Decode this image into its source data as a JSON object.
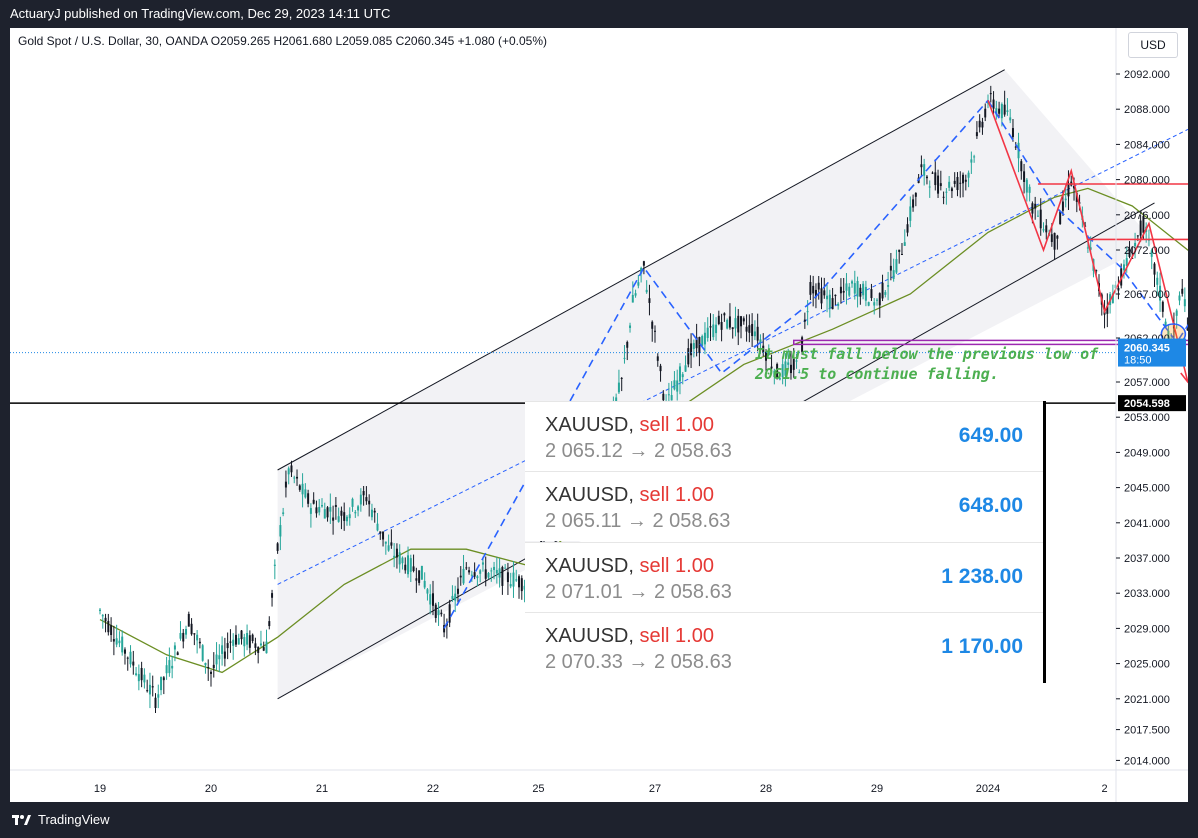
{
  "header": {
    "published": "ActuaryJ published on TradingView.com, Dec 29, 2023 14:11 UTC"
  },
  "legend": {
    "text": "Gold Spot / U.S. Dollar, 30, OANDA  O2059.265  H2061.680  L2059.085  C2060.345  +1.080 (+0.05%)"
  },
  "currency": "USD",
  "footer": {
    "brand": "TradingView"
  },
  "annotation": {
    "line1": "It must fall below the previous low of",
    "line2": "2061.5 to continue falling."
  },
  "trades": [
    {
      "symbol": "XAUUSD",
      "sep": ",",
      "side": "sell 1.00",
      "prices": "2 065.12 → 2 058.63",
      "pnl": "649.00"
    },
    {
      "symbol": "XAUUSD",
      "sep": ",",
      "side": "sell 1.00",
      "prices": "2 065.11 → 2 058.63",
      "pnl": "648.00"
    },
    {
      "symbol": "XAUUSD",
      "sep": ",",
      "side": "sell 1.00",
      "prices": "2 071.01 → 2 058.63",
      "pnl": "1 238.00"
    },
    {
      "symbol": "XAUUSD",
      "sep": ",",
      "side": "sell 1.00",
      "prices": "2 070.33 → 2 058.63",
      "pnl": "1 170.00"
    }
  ],
  "chart_data": {
    "type": "candlestick",
    "price_ticks": [
      "2092.000",
      "2088.000",
      "2084.000",
      "2080.000",
      "2076.000",
      "2072.000",
      "2067.000",
      "2062.000",
      "2057.000",
      "2053.000",
      "2049.000",
      "2045.000",
      "2041.000",
      "2037.000",
      "2033.000",
      "2029.000",
      "2025.000",
      "2021.000",
      "2017.500",
      "2014.000"
    ],
    "price_tick_values": [
      2092,
      2088,
      2084,
      2080,
      2076,
      2072,
      2067,
      2062,
      2057,
      2053,
      2049,
      2045,
      2041,
      2037,
      2033,
      2029,
      2025,
      2021,
      2017.5,
      2014
    ],
    "time_ticks": [
      "19",
      "20",
      "21",
      "22",
      "25",
      "27",
      "28",
      "29",
      "2024",
      "2"
    ],
    "current_price": {
      "label": "2060.345",
      "countdown": "18:50",
      "value": 2060.345,
      "color": "#1e88e5"
    },
    "horizontal_line": {
      "label": "2054.598",
      "value": 2054.598
    },
    "path_points": [
      {
        "t": 0.0,
        "p": 2031
      },
      {
        "t": 0.3,
        "p": 2025
      },
      {
        "t": 0.5,
        "p": 2021
      },
      {
        "t": 0.8,
        "p": 2030
      },
      {
        "t": 1.0,
        "p": 2024
      },
      {
        "t": 1.2,
        "p": 2028
      },
      {
        "t": 1.5,
        "p": 2027
      },
      {
        "t": 1.6,
        "p": 2038
      },
      {
        "t": 1.7,
        "p": 2047
      },
      {
        "t": 1.9,
        "p": 2043
      },
      {
        "t": 2.2,
        "p": 2042
      },
      {
        "t": 2.4,
        "p": 2044
      },
      {
        "t": 2.6,
        "p": 2038
      },
      {
        "t": 2.9,
        "p": 2035
      },
      {
        "t": 3.1,
        "p": 2029
      },
      {
        "t": 3.3,
        "p": 2036
      },
      {
        "t": 3.6,
        "p": 2035
      },
      {
        "t": 3.9,
        "p": 2034
      },
      {
        "t": 4.1,
        "p": 2046
      },
      {
        "t": 4.3,
        "p": 2052
      },
      {
        "t": 4.5,
        "p": 2048
      },
      {
        "t": 4.7,
        "p": 2057
      },
      {
        "t": 4.8,
        "p": 2066
      },
      {
        "t": 4.9,
        "p": 2070
      },
      {
        "t": 5.0,
        "p": 2062
      },
      {
        "t": 5.1,
        "p": 2054
      },
      {
        "t": 5.3,
        "p": 2060
      },
      {
        "t": 5.6,
        "p": 2064
      },
      {
        "t": 5.9,
        "p": 2063
      },
      {
        "t": 6.1,
        "p": 2058
      },
      {
        "t": 6.3,
        "p": 2059
      },
      {
        "t": 6.4,
        "p": 2068
      },
      {
        "t": 6.6,
        "p": 2066
      },
      {
        "t": 6.8,
        "p": 2068
      },
      {
        "t": 7.0,
        "p": 2066
      },
      {
        "t": 7.2,
        "p": 2071
      },
      {
        "t": 7.4,
        "p": 2081
      },
      {
        "t": 7.6,
        "p": 2079
      },
      {
        "t": 7.8,
        "p": 2080
      },
      {
        "t": 8.0,
        "p": 2089
      },
      {
        "t": 8.2,
        "p": 2087
      },
      {
        "t": 8.4,
        "p": 2077
      },
      {
        "t": 8.6,
        "p": 2073
      },
      {
        "t": 8.75,
        "p": 2080
      },
      {
        "t": 8.9,
        "p": 2073
      },
      {
        "t": 9.05,
        "p": 2065
      },
      {
        "t": 9.2,
        "p": 2069
      },
      {
        "t": 9.4,
        "p": 2075
      },
      {
        "t": 9.55,
        "p": 2067
      },
      {
        "t": 9.65,
        "p": 2061
      },
      {
        "t": 9.75,
        "p": 2068
      },
      {
        "t": 9.82,
        "p": 2060
      }
    ],
    "ma_points": [
      {
        "t": 0.0,
        "p": 2030
      },
      {
        "t": 0.6,
        "p": 2026
      },
      {
        "t": 1.1,
        "p": 2024
      },
      {
        "t": 1.6,
        "p": 2028
      },
      {
        "t": 2.2,
        "p": 2034
      },
      {
        "t": 2.8,
        "p": 2038
      },
      {
        "t": 3.3,
        "p": 2038
      },
      {
        "t": 3.9,
        "p": 2036
      },
      {
        "t": 4.5,
        "p": 2043
      },
      {
        "t": 5.1,
        "p": 2053
      },
      {
        "t": 5.8,
        "p": 2059
      },
      {
        "t": 6.6,
        "p": 2063
      },
      {
        "t": 7.3,
        "p": 2067
      },
      {
        "t": 8.0,
        "p": 2074
      },
      {
        "t": 8.6,
        "p": 2078
      },
      {
        "t": 8.9,
        "p": 2079
      },
      {
        "t": 9.3,
        "p": 2077
      },
      {
        "t": 9.7,
        "p": 2073
      },
      {
        "t": 9.9,
        "p": 2071
      }
    ],
    "channel_upper": [
      {
        "t": 1.6,
        "p": 2047
      },
      {
        "t": 8.0,
        "p": 2089
      }
    ],
    "channel_width": 26,
    "mid_line": [
      {
        "t": 1.6,
        "p": 2034
      },
      {
        "t": 10.8,
        "p": 2092
      }
    ],
    "zigzag_up": [
      {
        "t": 3.1,
        "p": 2029
      },
      {
        "t": 4.9,
        "p": 2070
      },
      {
        "t": 5.6,
        "p": 2058
      },
      {
        "t": 6.4,
        "p": 2066
      },
      {
        "t": 8.0,
        "p": 2089
      }
    ],
    "red_path": [
      {
        "t": 8.0,
        "p": 2089
      },
      {
        "t": 8.5,
        "p": 2072
      },
      {
        "t": 8.75,
        "p": 2081
      },
      {
        "t": 9.05,
        "p": 2065
      },
      {
        "t": 9.45,
        "p": 2075
      },
      {
        "t": 9.8,
        "p": 2057
      }
    ],
    "blue_projection": [
      {
        "t": 8.0,
        "p": 2089
      },
      {
        "t": 8.6,
        "p": 2077
      },
      {
        "t": 9.2,
        "p": 2070
      },
      {
        "t": 9.7,
        "p": 2061.5
      },
      {
        "t": 10.3,
        "p": 2073
      }
    ],
    "resistance_levels": [
      2079.5,
      2073.2
    ],
    "support_level": 2061.5,
    "ellipse_at": {
      "t": 9.67,
      "p": 2062
    }
  }
}
